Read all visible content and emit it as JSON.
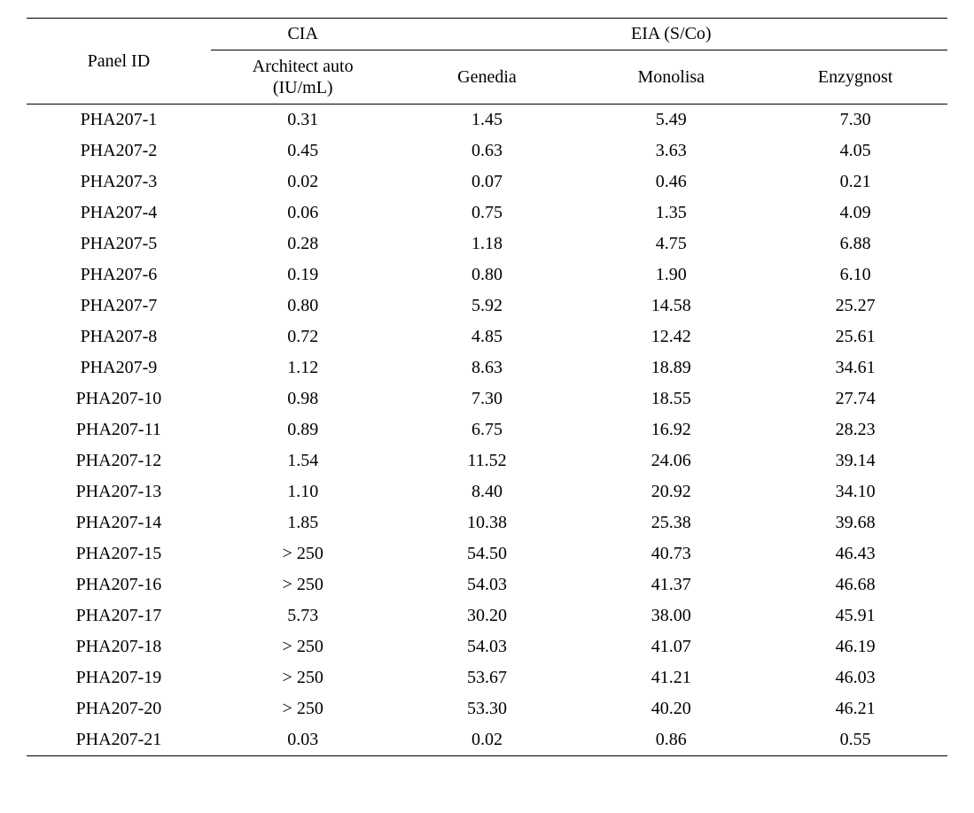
{
  "table": {
    "type": "table",
    "background_color": "#ffffff",
    "text_color": "#000000",
    "rule_color": "#000000",
    "font_family": "Times New Roman",
    "header": {
      "panel_id": "Panel ID",
      "group_cia": "CIA",
      "group_eia": "EIA  (S/Co)",
      "sub_architect_l1": "Architect auto",
      "sub_architect_l2": "(IU/mL)",
      "sub_genedia": "Genedia",
      "sub_monolisa": "Monolisa",
      "sub_enzygnost": "Enzygnost"
    },
    "column_widths_pct": [
      20,
      20,
      20,
      20,
      20
    ],
    "rows": [
      {
        "id": "PHA207-1",
        "cia": "0.31",
        "genedia": "1.45",
        "monolisa": "5.49",
        "enzygnost": "7.30"
      },
      {
        "id": "PHA207-2",
        "cia": "0.45",
        "genedia": "0.63",
        "monolisa": "3.63",
        "enzygnost": "4.05"
      },
      {
        "id": "PHA207-3",
        "cia": "0.02",
        "genedia": "0.07",
        "monolisa": "0.46",
        "enzygnost": "0.21"
      },
      {
        "id": "PHA207-4",
        "cia": "0.06",
        "genedia": "0.75",
        "monolisa": "1.35",
        "enzygnost": "4.09"
      },
      {
        "id": "PHA207-5",
        "cia": "0.28",
        "genedia": "1.18",
        "monolisa": "4.75",
        "enzygnost": "6.88"
      },
      {
        "id": "PHA207-6",
        "cia": "0.19",
        "genedia": "0.80",
        "monolisa": "1.90",
        "enzygnost": "6.10"
      },
      {
        "id": "PHA207-7",
        "cia": "0.80",
        "genedia": "5.92",
        "monolisa": "14.58",
        "enzygnost": "25.27"
      },
      {
        "id": "PHA207-8",
        "cia": "0.72",
        "genedia": "4.85",
        "monolisa": "12.42",
        "enzygnost": "25.61"
      },
      {
        "id": "PHA207-9",
        "cia": "1.12",
        "genedia": "8.63",
        "monolisa": "18.89",
        "enzygnost": "34.61"
      },
      {
        "id": "PHA207-10",
        "cia": "0.98",
        "genedia": "7.30",
        "monolisa": "18.55",
        "enzygnost": "27.74"
      },
      {
        "id": "PHA207-11",
        "cia": "0.89",
        "genedia": "6.75",
        "monolisa": "16.92",
        "enzygnost": "28.23"
      },
      {
        "id": "PHA207-12",
        "cia": "1.54",
        "genedia": "11.52",
        "monolisa": "24.06",
        "enzygnost": "39.14"
      },
      {
        "id": "PHA207-13",
        "cia": "1.10",
        "genedia": "8.40",
        "monolisa": "20.92",
        "enzygnost": "34.10"
      },
      {
        "id": "PHA207-14",
        "cia": "1.85",
        "genedia": "10.38",
        "monolisa": "25.38",
        "enzygnost": "39.68"
      },
      {
        "id": "PHA207-15",
        "cia": "> 250",
        "genedia": "54.50",
        "monolisa": "40.73",
        "enzygnost": "46.43"
      },
      {
        "id": "PHA207-16",
        "cia": "> 250",
        "genedia": "54.03",
        "monolisa": "41.37",
        "enzygnost": "46.68"
      },
      {
        "id": "PHA207-17",
        "cia": "5.73",
        "genedia": "30.20",
        "monolisa": "38.00",
        "enzygnost": "45.91"
      },
      {
        "id": "PHA207-18",
        "cia": "> 250",
        "genedia": "54.03",
        "monolisa": "41.07",
        "enzygnost": "46.19"
      },
      {
        "id": "PHA207-19",
        "cia": "> 250",
        "genedia": "53.67",
        "monolisa": "41.21",
        "enzygnost": "46.03"
      },
      {
        "id": "PHA207-20",
        "cia": "> 250",
        "genedia": "53.30",
        "monolisa": "40.20",
        "enzygnost": "46.21"
      },
      {
        "id": "PHA207-21",
        "cia": "0.03",
        "genedia": "0.02",
        "monolisa": "0.86",
        "enzygnost": "0.55"
      }
    ]
  }
}
